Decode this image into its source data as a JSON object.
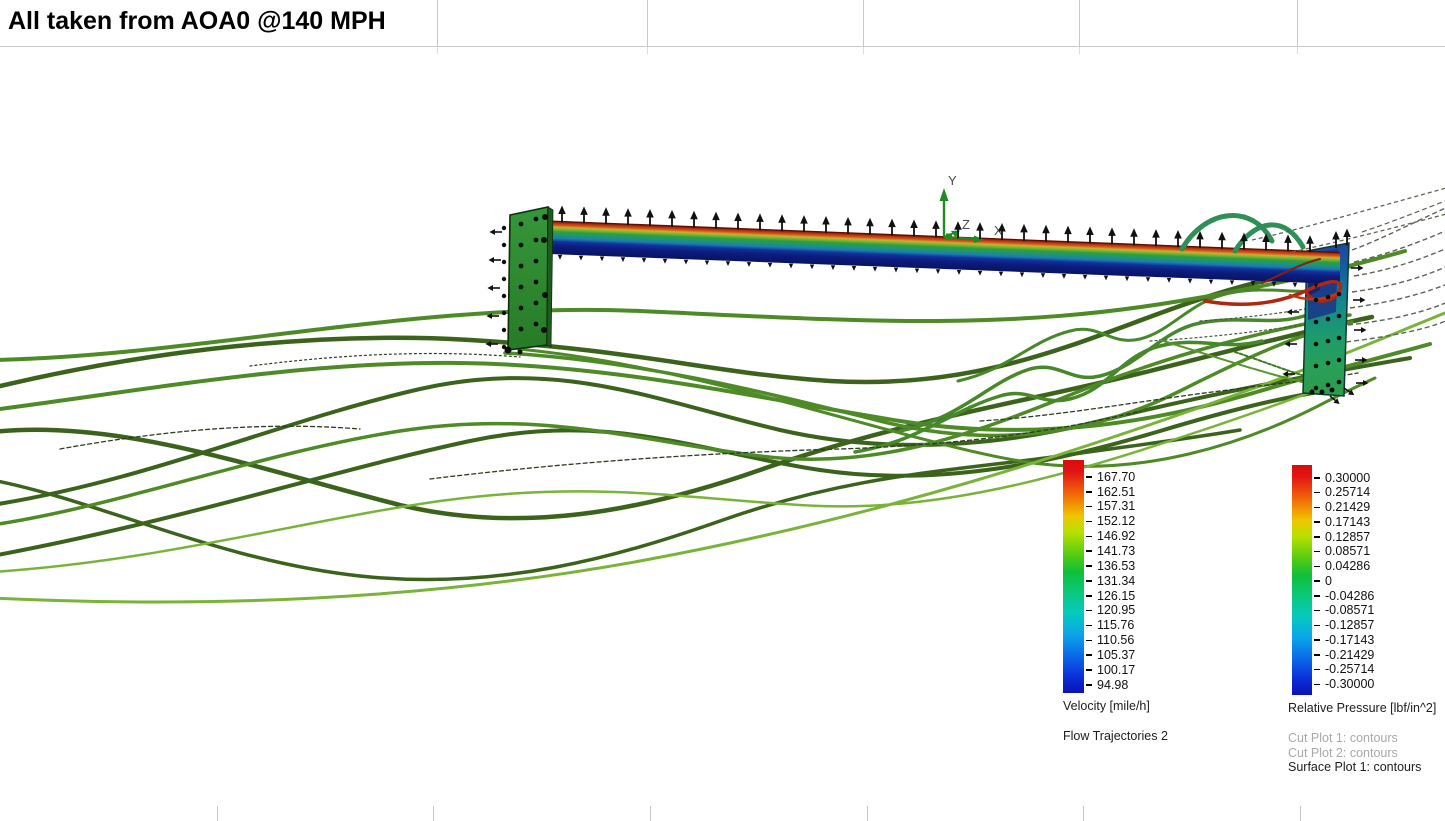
{
  "title": "All taken from AOA0 @140 MPH",
  "scene": {
    "axis_labels": {
      "x": "X",
      "y": "Y",
      "z": "Z"
    }
  },
  "legends": {
    "velocity": {
      "unit_label": "Velocity [mile/h]",
      "caption": "Flow Trajectories 2",
      "ticks": [
        "167.70",
        "162.51",
        "157.31",
        "152.12",
        "146.92",
        "141.73",
        "136.53",
        "131.34",
        "126.15",
        "120.95",
        "115.76",
        "110.56",
        "105.37",
        "100.17",
        "94.98"
      ]
    },
    "pressure": {
      "unit_label": "Relative Pressure [lbf/in^2]",
      "cut_plot_1": "Cut Plot 1: contours",
      "cut_plot_2": "Cut Plot 2: contours",
      "surface_plot": "Surface Plot 1: contours",
      "ticks": [
        "0.30000",
        "0.25714",
        "0.21429",
        "0.17143",
        "0.12857",
        "0.08571",
        "0.04286",
        "0",
        "-0.04286",
        "-0.08571",
        "-0.12857",
        "-0.17143",
        "-0.21429",
        "-0.25714",
        "-0.30000"
      ]
    }
  },
  "colors": {
    "gridline": "#c9c9c9",
    "muted_caption": "#a9a9a9",
    "streamline_greens": [
      "#3b631b",
      "#4e8a25",
      "#7ab33a"
    ],
    "vortex_red": "#b02711",
    "endplate_green": "#2e8b2e",
    "rainbow_top": "#d90c0c",
    "rainbow_bottom": "#0a12b4"
  }
}
